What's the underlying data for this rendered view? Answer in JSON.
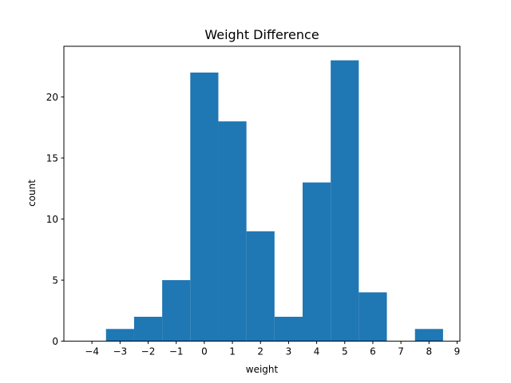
{
  "chart_data": {
    "type": "bar",
    "title": "Weight Difference",
    "xlabel": "weight",
    "ylabel": "count",
    "bar_color": "#1f77b4",
    "xlim": [
      -5.0,
      9.1
    ],
    "ylim": [
      0,
      24.15
    ],
    "bins": [
      {
        "start": -3.5,
        "end": -2.5,
        "count": 1
      },
      {
        "start": -2.5,
        "end": -1.5,
        "count": 2
      },
      {
        "start": -1.5,
        "end": -0.5,
        "count": 5
      },
      {
        "start": -0.5,
        "end": 0.5,
        "count": 22
      },
      {
        "start": 0.5,
        "end": 1.5,
        "count": 18
      },
      {
        "start": 1.5,
        "end": 2.5,
        "count": 9
      },
      {
        "start": 2.5,
        "end": 3.5,
        "count": 2
      },
      {
        "start": 3.5,
        "end": 4.5,
        "count": 13
      },
      {
        "start": 4.5,
        "end": 5.5,
        "count": 23
      },
      {
        "start": 5.5,
        "end": 6.5,
        "count": 4
      },
      {
        "start": 6.5,
        "end": 7.5,
        "count": 0
      },
      {
        "start": 7.5,
        "end": 8.5,
        "count": 1
      }
    ],
    "xticks": [
      -4,
      -3,
      -2,
      -1,
      0,
      1,
      2,
      3,
      4,
      5,
      6,
      7,
      8,
      9
    ],
    "xtick_labels": [
      "−4",
      "−3",
      "−2",
      "−1",
      "0",
      "1",
      "2",
      "3",
      "4",
      "5",
      "6",
      "7",
      "8",
      "9"
    ],
    "yticks": [
      0,
      5,
      10,
      15,
      20
    ],
    "ytick_labels": [
      "0",
      "5",
      "10",
      "15",
      "20"
    ]
  }
}
